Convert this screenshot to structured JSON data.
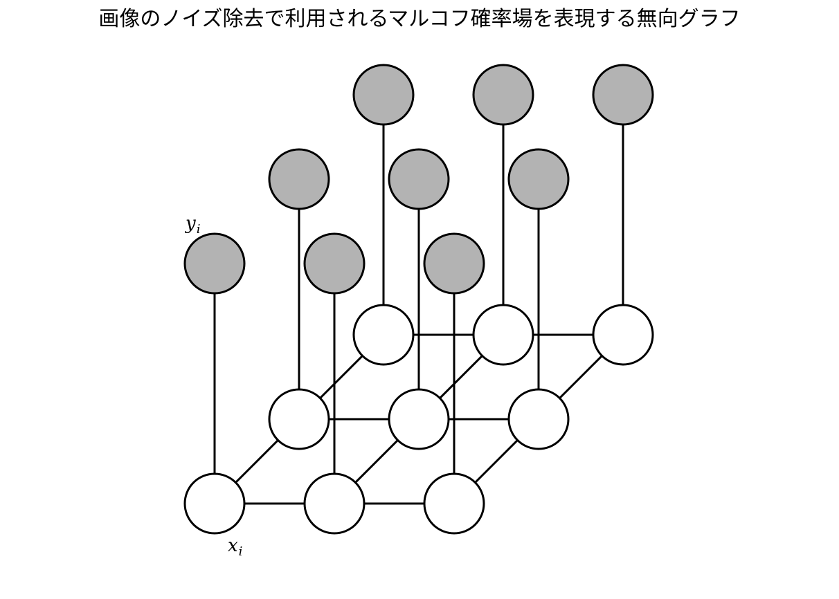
{
  "title": "画像のノイズ除去で利用されるマルコフ確率場を表現する無向グラフ",
  "labels": {
    "observed_var": "y",
    "observed_sub": "i",
    "latent_var": "x",
    "latent_sub": "i"
  },
  "colors": {
    "observed_fill": "#b3b3b3",
    "latent_fill": "#ffffff",
    "stroke": "#000000"
  },
  "grid": {
    "rows": 3,
    "cols": 3
  }
}
